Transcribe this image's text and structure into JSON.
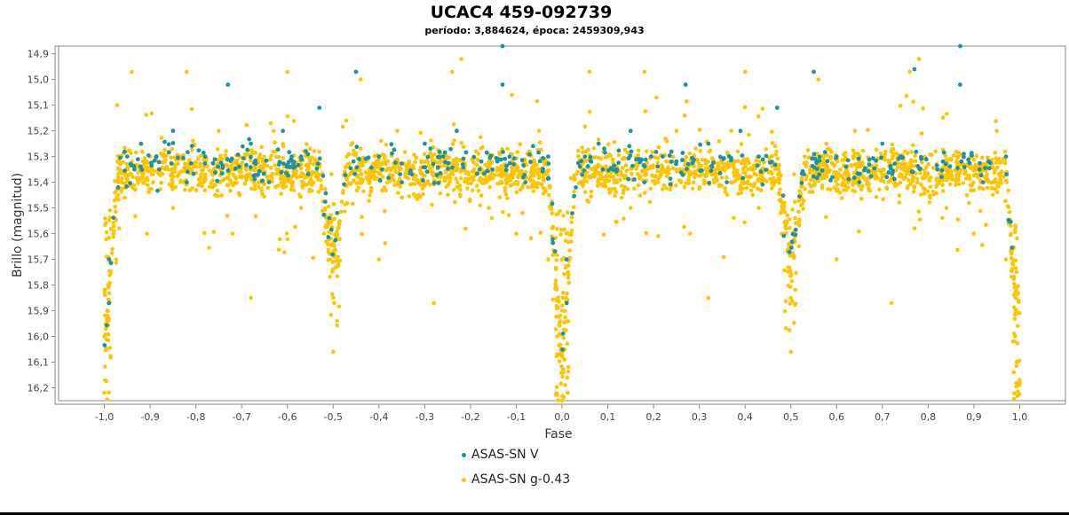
{
  "chart_data": {
    "type": "scatter",
    "title": "UCAC4 459-092739",
    "subtitle": "período: 3,884624, época: 2459309,943",
    "xlabel": "Fase",
    "ylabel": "Brillo (magnitud)",
    "xlim": [
      -1.1,
      1.1
    ],
    "ylim": [
      16.25,
      14.87
    ],
    "y_inverted": true,
    "x_ticks": [
      "-1,0",
      "-0,9",
      "-0,8",
      "-0,7",
      "-0,6",
      "-0,5",
      "-0,4",
      "-0,3",
      "-0,2",
      "-0,1",
      "0,0",
      "0,1",
      "0,2",
      "0,3",
      "0,4",
      "0,5",
      "0,6",
      "0,7",
      "0,8",
      "0,9",
      "1,0"
    ],
    "y_ticks": [
      "14,9",
      "15,0",
      "15,1",
      "15,2",
      "15,3",
      "15,4",
      "15,5",
      "15,6",
      "15,7",
      "15,8",
      "15,9",
      "16,0",
      "16,1",
      "16,2"
    ],
    "legend_position": "bottom",
    "series": [
      {
        "name": "ASAS-SN V",
        "color": "#1a93a6",
        "sample_points": [
          [
            -0.99,
            15.7
          ],
          [
            -0.99,
            15.87
          ],
          [
            -0.97,
            15.42
          ],
          [
            -0.95,
            15.3
          ],
          [
            -0.92,
            15.25
          ],
          [
            -0.88,
            15.35
          ],
          [
            -0.85,
            15.2
          ],
          [
            -0.82,
            15.4
          ],
          [
            -0.78,
            15.3
          ],
          [
            -0.73,
            15.02
          ],
          [
            -0.68,
            15.25
          ],
          [
            -0.64,
            15.4
          ],
          [
            -0.61,
            15.2
          ],
          [
            -0.57,
            15.3
          ],
          [
            -0.53,
            15.11
          ],
          [
            -0.45,
            14.97
          ],
          [
            -0.4,
            15.3
          ],
          [
            -0.35,
            15.4
          ],
          [
            -0.3,
            15.25
          ],
          [
            -0.26,
            15.3
          ],
          [
            -0.23,
            15.2
          ],
          [
            -0.18,
            15.35
          ],
          [
            -0.13,
            14.87
          ],
          [
            -0.13,
            15.02
          ],
          [
            -0.08,
            15.4
          ],
          [
            -0.03,
            15.3
          ],
          [
            0.01,
            15.7
          ],
          [
            0.01,
            15.87
          ],
          [
            0.03,
            15.42
          ],
          [
            0.05,
            15.3
          ],
          [
            0.08,
            15.25
          ],
          [
            0.12,
            15.35
          ],
          [
            0.15,
            15.2
          ],
          [
            0.18,
            15.4
          ],
          [
            0.22,
            15.3
          ],
          [
            0.27,
            15.02
          ],
          [
            0.32,
            15.25
          ],
          [
            0.36,
            15.4
          ],
          [
            0.39,
            15.2
          ],
          [
            0.43,
            15.3
          ],
          [
            0.47,
            15.11
          ],
          [
            0.55,
            14.97
          ],
          [
            0.6,
            15.3
          ],
          [
            0.65,
            15.4
          ],
          [
            0.7,
            15.25
          ],
          [
            0.74,
            15.3
          ],
          [
            0.77,
            14.96
          ],
          [
            0.82,
            15.35
          ],
          [
            0.87,
            14.87
          ],
          [
            0.87,
            15.02
          ],
          [
            0.92,
            15.4
          ],
          [
            0.97,
            15.3
          ]
        ]
      },
      {
        "name": "ASAS-SN g-0.43",
        "color": "#ffc400",
        "sample_points": [
          [
            -1.0,
            16.22
          ],
          [
            -1.0,
            16.0
          ],
          [
            -0.99,
            15.8
          ],
          [
            -0.98,
            15.6
          ],
          [
            -0.97,
            15.4
          ],
          [
            -0.94,
            14.97
          ],
          [
            -0.9,
            15.3
          ],
          [
            -0.85,
            15.5
          ],
          [
            -0.82,
            14.97
          ],
          [
            -0.79,
            15.4
          ],
          [
            -0.75,
            15.2
          ],
          [
            -0.72,
            15.6
          ],
          [
            -0.68,
            15.85
          ],
          [
            -0.63,
            15.2
          ],
          [
            -0.6,
            14.97
          ],
          [
            -0.57,
            15.5
          ],
          [
            -0.52,
            15.6
          ],
          [
            -0.5,
            15.85
          ],
          [
            -0.5,
            16.06
          ],
          [
            -0.47,
            15.3
          ],
          [
            -0.44,
            15.0
          ],
          [
            -0.4,
            15.7
          ],
          [
            -0.36,
            15.2
          ],
          [
            -0.28,
            15.87
          ],
          [
            -0.24,
            14.97
          ],
          [
            -0.22,
            14.92
          ],
          [
            -0.16,
            15.5
          ],
          [
            -0.1,
            15.6
          ],
          [
            -0.05,
            15.2
          ],
          [
            -0.03,
            15.7
          ],
          [
            -0.01,
            16.0
          ],
          [
            0.0,
            16.25
          ],
          [
            0.0,
            15.9
          ],
          [
            0.01,
            15.6
          ],
          [
            0.04,
            15.4
          ],
          [
            0.06,
            14.97
          ],
          [
            0.1,
            15.3
          ],
          [
            0.15,
            15.5
          ],
          [
            0.18,
            14.97
          ],
          [
            0.21,
            15.4
          ],
          [
            0.25,
            15.2
          ],
          [
            0.28,
            15.6
          ],
          [
            0.32,
            15.85
          ],
          [
            0.37,
            15.2
          ],
          [
            0.4,
            14.97
          ],
          [
            0.43,
            15.5
          ],
          [
            0.48,
            15.6
          ],
          [
            0.5,
            15.85
          ],
          [
            0.5,
            16.06
          ],
          [
            0.53,
            15.3
          ],
          [
            0.56,
            15.0
          ],
          [
            0.6,
            15.7
          ],
          [
            0.64,
            15.2
          ],
          [
            0.72,
            15.87
          ],
          [
            0.76,
            14.97
          ],
          [
            0.78,
            14.92
          ],
          [
            0.84,
            15.5
          ],
          [
            0.9,
            15.6
          ],
          [
            0.95,
            15.2
          ],
          [
            0.97,
            15.7
          ],
          [
            0.99,
            16.0
          ],
          [
            1.0,
            16.18
          ]
        ]
      }
    ]
  }
}
